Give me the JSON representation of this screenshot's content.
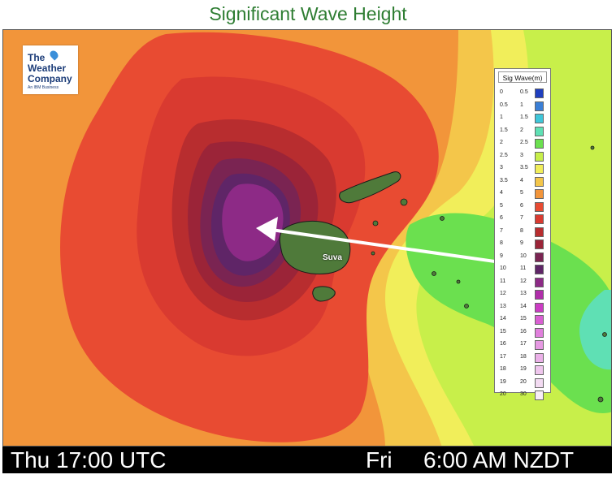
{
  "title": "Significant Wave Height",
  "logo": {
    "line1": "The",
    "line2": "Weather",
    "line3": "Company",
    "line4": "An IBM Business"
  },
  "legend": {
    "heading": "Sig Wave(m)",
    "rows": [
      {
        "lo": "0",
        "hi": "0.5",
        "color": "#1f3fbf"
      },
      {
        "lo": "0.5",
        "hi": "1",
        "color": "#3a7fd6"
      },
      {
        "lo": "1",
        "hi": "1.5",
        "color": "#3fc6d9"
      },
      {
        "lo": "1.5",
        "hi": "2",
        "color": "#5fe0b4"
      },
      {
        "lo": "2",
        "hi": "2.5",
        "color": "#6be04f"
      },
      {
        "lo": "2.5",
        "hi": "3",
        "color": "#c8ef4a"
      },
      {
        "lo": "3",
        "hi": "3.5",
        "color": "#f1ee5a"
      },
      {
        "lo": "3.5",
        "hi": "4",
        "color": "#f4c64a"
      },
      {
        "lo": "4",
        "hi": "5",
        "color": "#f2953a"
      },
      {
        "lo": "5",
        "hi": "6",
        "color": "#e84b32"
      },
      {
        "lo": "6",
        "hi": "7",
        "color": "#d93a30"
      },
      {
        "lo": "7",
        "hi": "8",
        "color": "#b82d2f"
      },
      {
        "lo": "8",
        "hi": "9",
        "color": "#9b2438"
      },
      {
        "lo": "9",
        "hi": "10",
        "color": "#7a2452"
      },
      {
        "lo": "10",
        "hi": "11",
        "color": "#5f2567"
      },
      {
        "lo": "11",
        "hi": "12",
        "color": "#8d2a86"
      },
      {
        "lo": "12",
        "hi": "13",
        "color": "#b02eaa"
      },
      {
        "lo": "13",
        "hi": "14",
        "color": "#cc3cc4"
      },
      {
        "lo": "14",
        "hi": "15",
        "color": "#d95fd2"
      },
      {
        "lo": "15",
        "hi": "16",
        "color": "#e07fdc"
      },
      {
        "lo": "16",
        "hi": "17",
        "color": "#e699e3"
      },
      {
        "lo": "17",
        "hi": "18",
        "color": "#ebb0e8"
      },
      {
        "lo": "18",
        "hi": "19",
        "color": "#efc6ed"
      },
      {
        "lo": "19",
        "hi": "20",
        "color": "#f3dbf2"
      },
      {
        "lo": "20",
        "hi": "30",
        "color": "#f8eef8"
      }
    ]
  },
  "place_label": "Suva",
  "bottom_bar": {
    "utc": "Thu 17:00 UTC",
    "day": "Fri",
    "local": "6:00 AM NZDT"
  }
}
